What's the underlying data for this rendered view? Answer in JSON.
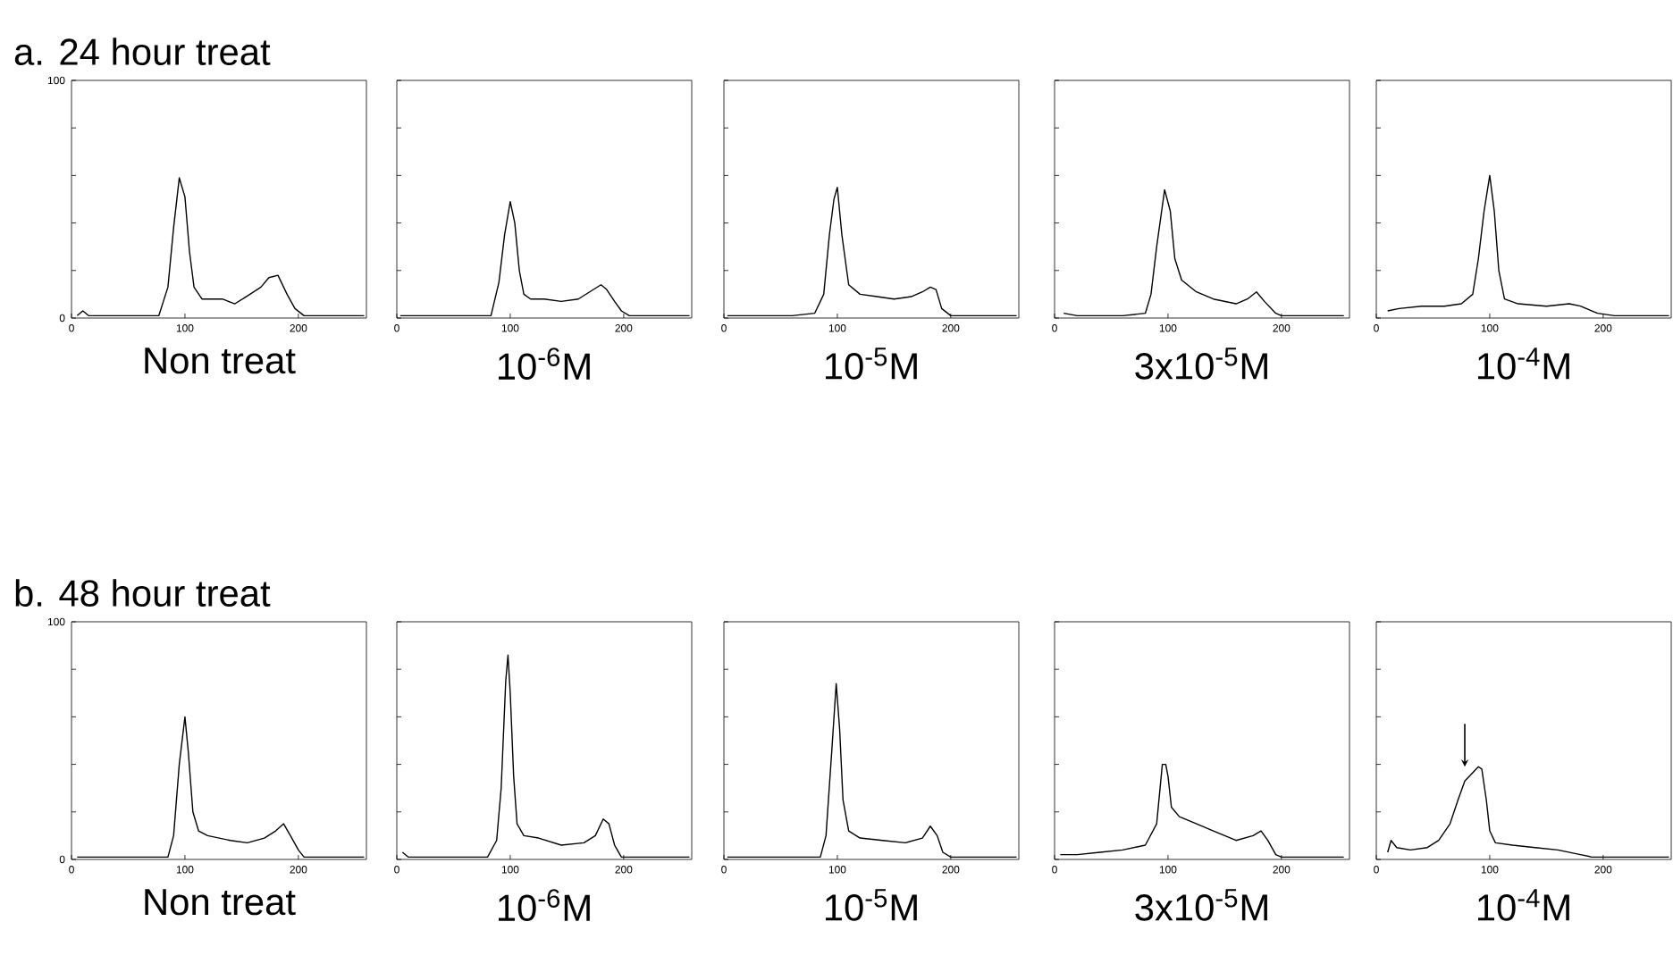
{
  "chart_data": [
    {
      "type": "line",
      "title": "a. 24 hour treat",
      "xlabel": "Non treat",
      "color": "#000000",
      "xlim": [
        0,
        260
      ],
      "ylim": [
        0,
        100
      ],
      "xticks": [
        0,
        100,
        200
      ],
      "yticks": [
        0,
        {
          "value": 20,
          "label": null
        },
        {
          "value": 40,
          "label": null
        },
        {
          "value": 60,
          "label": null
        },
        {
          "value": 80,
          "label": null
        },
        100
      ],
      "x": [
        5,
        10,
        15,
        20,
        40,
        60,
        77,
        85,
        90,
        95,
        100,
        104,
        108,
        115,
        133,
        144,
        154,
        167,
        174,
        182,
        190,
        197,
        205,
        230,
        258
      ],
      "values": [
        1,
        3,
        1,
        1,
        1,
        1,
        1,
        13,
        38,
        59,
        51,
        28,
        13,
        8,
        8,
        6,
        9,
        13,
        17,
        18,
        10,
        4,
        1,
        1,
        1
      ]
    },
    {
      "type": "line",
      "xlabel": "10$^{-6}$M",
      "color": "#000000",
      "xlim": [
        0,
        260
      ],
      "ylim": [
        0,
        100
      ],
      "xticks": [
        0,
        100,
        200
      ],
      "yticks": [
        {
          "value": 0,
          "label": null
        },
        {
          "value": 20,
          "label": null
        },
        {
          "value": 40,
          "label": null
        },
        {
          "value": 60,
          "label": null
        },
        {
          "value": 80,
          "label": null
        },
        {
          "value": 100,
          "label": null
        }
      ],
      "tick_labels": "x",
      "x": [
        3,
        20,
        40,
        60,
        83,
        90,
        95,
        100,
        104,
        108,
        112,
        118,
        130,
        145,
        160,
        170,
        180,
        185,
        192,
        198,
        205,
        230,
        258
      ],
      "values": [
        1,
        1,
        1,
        1,
        1,
        15,
        35,
        49,
        40,
        20,
        10,
        8,
        8,
        7,
        8,
        11,
        14,
        12,
        7,
        3,
        1,
        1,
        1
      ]
    },
    {
      "type": "line",
      "xlabel": "10$^{-5}$M",
      "color": "#000000",
      "xlim": [
        0,
        260
      ],
      "ylim": [
        0,
        100
      ],
      "xticks": [
        0,
        100,
        200
      ],
      "yticks": [
        {
          "value": 0,
          "label": null
        },
        {
          "value": 20,
          "label": null
        },
        {
          "value": 40,
          "label": null
        },
        {
          "value": 60,
          "label": null
        },
        {
          "value": 80,
          "label": null
        },
        {
          "value": 100,
          "label": null
        }
      ],
      "tick_labels": "x",
      "x": [
        3,
        20,
        40,
        60,
        80,
        88,
        93,
        97,
        100,
        104,
        110,
        120,
        135,
        150,
        165,
        175,
        182,
        187,
        192,
        200,
        230,
        258
      ],
      "values": [
        1,
        1,
        1,
        1,
        2,
        10,
        35,
        50,
        55,
        35,
        14,
        10,
        9,
        8,
        9,
        11,
        13,
        12,
        4,
        1,
        1,
        1
      ]
    },
    {
      "type": "line",
      "xlabel": "3x10$^{-5}$M",
      "color": "#000000",
      "xlim": [
        0,
        260
      ],
      "ylim": [
        0,
        100
      ],
      "xticks": [
        0,
        100,
        200
      ],
      "yticks": [
        {
          "value": 0,
          "label": null
        },
        {
          "value": 20,
          "label": null
        },
        {
          "value": 40,
          "label": null
        },
        {
          "value": 60,
          "label": null
        },
        {
          "value": 80,
          "label": null
        },
        {
          "value": 100,
          "label": null
        }
      ],
      "tick_labels": "x",
      "x": [
        8,
        20,
        40,
        60,
        80,
        85,
        90,
        97,
        102,
        106,
        112,
        125,
        140,
        160,
        170,
        178,
        185,
        195,
        200,
        230,
        255
      ],
      "values": [
        2,
        1,
        1,
        1,
        2,
        10,
        30,
        54,
        45,
        25,
        16,
        11,
        8,
        6,
        8,
        11,
        7,
        2,
        1,
        1,
        1
      ]
    },
    {
      "type": "line",
      "xlabel": "10$^{-4}$M",
      "color": "#000000",
      "xlim": [
        0,
        260
      ],
      "ylim": [
        0,
        100
      ],
      "xticks": [
        0,
        100,
        200
      ],
      "yticks": [
        {
          "value": 0,
          "label": null
        },
        {
          "value": 20,
          "label": null
        },
        {
          "value": 40,
          "label": null
        },
        {
          "value": 60,
          "label": null
        },
        {
          "value": 80,
          "label": null
        },
        {
          "value": 100,
          "label": null
        }
      ],
      "tick_labels": "x",
      "x": [
        10,
        20,
        40,
        60,
        75,
        85,
        90,
        95,
        100,
        104,
        108,
        113,
        125,
        150,
        170,
        180,
        195,
        210,
        240,
        258
      ],
      "values": [
        3,
        4,
        5,
        5,
        6,
        10,
        25,
        45,
        60,
        45,
        20,
        8,
        6,
        5,
        6,
        5,
        2,
        1,
        1,
        1
      ]
    },
    {
      "type": "line",
      "title": "b. 48 hour treat",
      "xlabel": "Non treat",
      "color": "#000000",
      "xlim": [
        0,
        260
      ],
      "ylim": [
        0,
        100
      ],
      "xticks": [
        0,
        100,
        200
      ],
      "yticks": [
        0,
        {
          "value": 20,
          "label": null
        },
        {
          "value": 40,
          "label": null
        },
        {
          "value": 60,
          "label": null
        },
        {
          "value": 80,
          "label": null
        },
        100
      ],
      "x": [
        5,
        20,
        40,
        60,
        85,
        90,
        95,
        100,
        103,
        107,
        112,
        120,
        140,
        155,
        170,
        180,
        187,
        193,
        200,
        205,
        230,
        258
      ],
      "values": [
        1,
        1,
        1,
        1,
        1,
        10,
        40,
        60,
        45,
        20,
        12,
        10,
        8,
        7,
        9,
        12,
        15,
        10,
        4,
        1,
        1,
        1
      ]
    },
    {
      "type": "line",
      "xlabel": "10$^{-6}$M",
      "color": "#000000",
      "xlim": [
        0,
        260
      ],
      "ylim": [
        0,
        100
      ],
      "xticks": [
        0,
        100,
        200
      ],
      "yticks": [
        {
          "value": 0,
          "label": null
        },
        {
          "value": 20,
          "label": null
        },
        {
          "value": 40,
          "label": null
        },
        {
          "value": 60,
          "label": null
        },
        {
          "value": 80,
          "label": null
        },
        {
          "value": 100,
          "label": null
        }
      ],
      "tick_labels": "x",
      "x": [
        5,
        10,
        20,
        40,
        60,
        80,
        88,
        92,
        96,
        98,
        100,
        103,
        106,
        112,
        125,
        145,
        165,
        175,
        182,
        187,
        192,
        198,
        205,
        230,
        258
      ],
      "values": [
        3,
        1,
        1,
        1,
        1,
        1,
        8,
        30,
        75,
        86,
        70,
        35,
        15,
        10,
        9,
        6,
        7,
        10,
        17,
        15,
        6,
        1,
        1,
        1,
        1
      ]
    },
    {
      "type": "line",
      "xlabel": "10$^{-5}$M",
      "color": "#000000",
      "xlim": [
        0,
        260
      ],
      "ylim": [
        0,
        100
      ],
      "xticks": [
        0,
        100,
        200
      ],
      "yticks": [
        {
          "value": 0,
          "label": null
        },
        {
          "value": 20,
          "label": null
        },
        {
          "value": 40,
          "label": null
        },
        {
          "value": 60,
          "label": null
        },
        {
          "value": 80,
          "label": null
        },
        {
          "value": 100,
          "label": null
        }
      ],
      "tick_labels": "x",
      "x": [
        3,
        20,
        40,
        60,
        85,
        90,
        95,
        99,
        102,
        105,
        110,
        120,
        140,
        160,
        175,
        182,
        188,
        193,
        200,
        230,
        258
      ],
      "values": [
        1,
        1,
        1,
        1,
        1,
        10,
        45,
        74,
        55,
        25,
        12,
        9,
        8,
        7,
        9,
        14,
        10,
        3,
        1,
        1,
        1
      ]
    },
    {
      "type": "line",
      "xlabel": "3x10$^{-5}$M",
      "color": "#000000",
      "xlim": [
        0,
        260
      ],
      "ylim": [
        0,
        100
      ],
      "xticks": [
        0,
        100,
        200
      ],
      "yticks": [
        {
          "value": 0,
          "label": null
        },
        {
          "value": 20,
          "label": null
        },
        {
          "value": 40,
          "label": null
        },
        {
          "value": 60,
          "label": null
        },
        {
          "value": 80,
          "label": null
        },
        {
          "value": 100,
          "label": null
        }
      ],
      "tick_labels": "x",
      "x": [
        5,
        20,
        40,
        60,
        80,
        90,
        95,
        98,
        100,
        103,
        110,
        120,
        140,
        160,
        175,
        182,
        188,
        195,
        200,
        230,
        255
      ],
      "values": [
        2,
        2,
        3,
        4,
        6,
        15,
        40,
        40,
        35,
        22,
        18,
        16,
        12,
        8,
        10,
        12,
        8,
        2,
        1,
        1,
        1
      ]
    },
    {
      "type": "line",
      "xlabel": "10$^{-4}$M",
      "color": "#000000",
      "xlim": [
        0,
        260
      ],
      "ylim": [
        0,
        100
      ],
      "xticks": [
        0,
        100,
        200
      ],
      "yticks": [
        {
          "value": 0,
          "label": null
        },
        {
          "value": 20,
          "label": null
        },
        {
          "value": 40,
          "label": null
        },
        {
          "value": 60,
          "label": null
        },
        {
          "value": 80,
          "label": null
        },
        {
          "value": 100,
          "label": null
        }
      ],
      "tick_labels": "x",
      "x": [
        10,
        13,
        18,
        30,
        45,
        55,
        65,
        72,
        78,
        84,
        90,
        93,
        97,
        100,
        105,
        120,
        140,
        160,
        180,
        190,
        200,
        240,
        258
      ],
      "values": [
        3,
        8,
        5,
        4,
        5,
        8,
        15,
        25,
        33,
        36,
        39,
        38,
        25,
        12,
        7,
        6,
        5,
        4,
        2,
        1,
        1,
        1,
        1
      ]
    }
  ]
}
